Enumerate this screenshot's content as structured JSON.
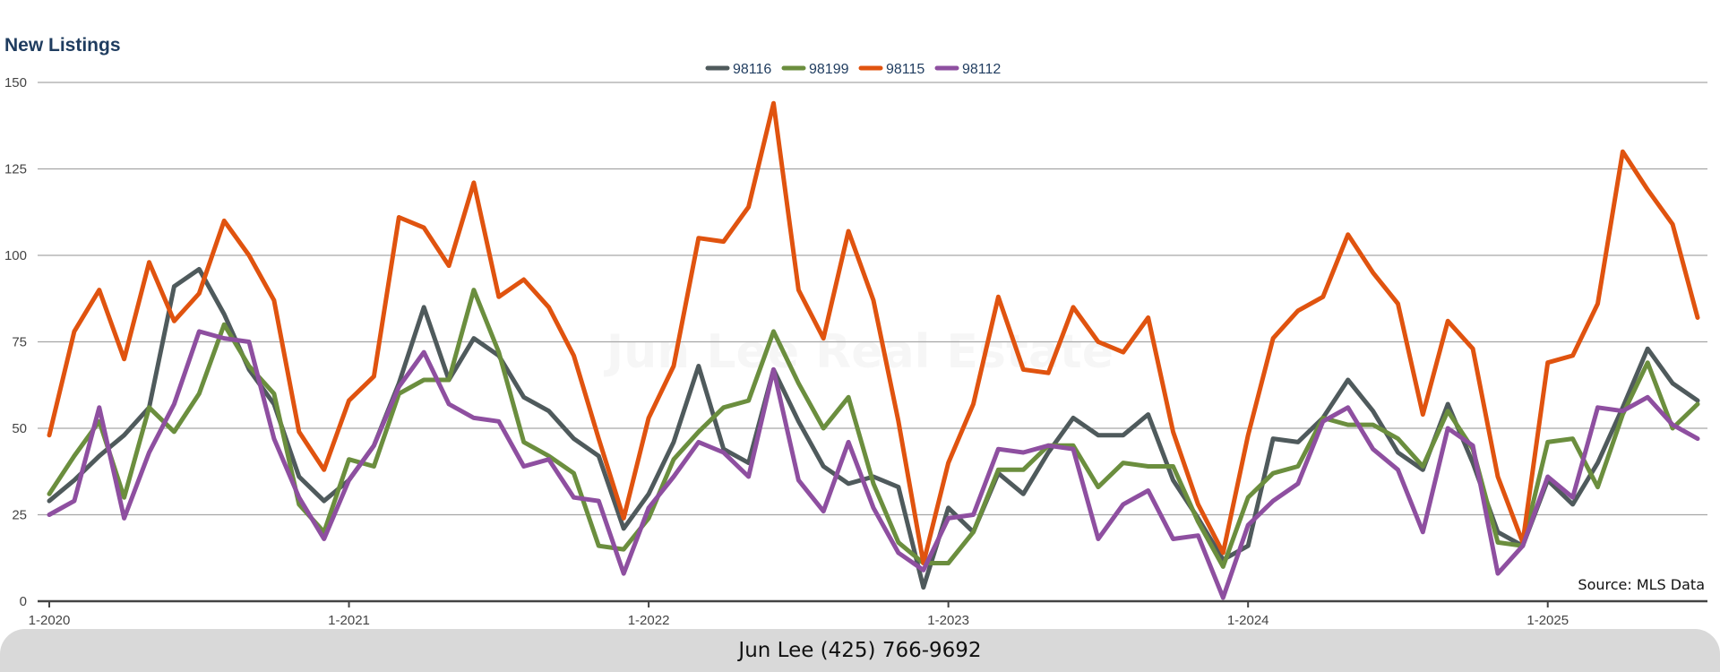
{
  "chart_data": {
    "type": "line",
    "title": "New Listings",
    "xlabel": "",
    "ylabel": "",
    "ylim": [
      0,
      150
    ],
    "yticks": [
      0,
      25,
      50,
      75,
      100,
      125,
      150
    ],
    "x": [
      "1-2020",
      "2-2020",
      "3-2020",
      "4-2020",
      "5-2020",
      "6-2020",
      "7-2020",
      "8-2020",
      "9-2020",
      "10-2020",
      "11-2020",
      "12-2020",
      "1-2021",
      "2-2021",
      "3-2021",
      "4-2021",
      "5-2021",
      "6-2021",
      "7-2021",
      "8-2021",
      "9-2021",
      "10-2021",
      "11-2021",
      "12-2021",
      "1-2022",
      "2-2022",
      "3-2022",
      "4-2022",
      "5-2022",
      "6-2022",
      "7-2022",
      "8-2022",
      "9-2022",
      "10-2022",
      "11-2022",
      "12-2022",
      "1-2023",
      "2-2023",
      "3-2023",
      "4-2023",
      "5-2023",
      "6-2023",
      "7-2023",
      "8-2023",
      "9-2023",
      "10-2023",
      "11-2023",
      "12-2023",
      "1-2024",
      "2-2024",
      "3-2024",
      "4-2024",
      "5-2024",
      "6-2024",
      "7-2024",
      "8-2024",
      "9-2024",
      "10-2024",
      "11-2024",
      "12-2024",
      "1-2025",
      "2-2025",
      "3-2025",
      "4-2025",
      "5-2025",
      "6-2025",
      "7-2025"
    ],
    "xtick_labels": [
      "1-2020",
      "1-2021",
      "1-2022",
      "1-2023",
      "1-2024",
      "1-2025"
    ],
    "legend_position": "top-center",
    "grid": true,
    "series": [
      {
        "name": "98116",
        "color": "#4f5a5c",
        "values": [
          29,
          35,
          42,
          48,
          56,
          91,
          96,
          83,
          67,
          57,
          36,
          29,
          35,
          45,
          63,
          85,
          64,
          76,
          71,
          59,
          55,
          47,
          42,
          21,
          31,
          46,
          68,
          44,
          40,
          67,
          52,
          39,
          34,
          36,
          33,
          4,
          27,
          20,
          37,
          31,
          43,
          53,
          48,
          48,
          54,
          35,
          24,
          12,
          16,
          47,
          46,
          53,
          64,
          55,
          43,
          38,
          57,
          40,
          20,
          16,
          35,
          28,
          40,
          56,
          73,
          63,
          58
        ]
      },
      {
        "name": "98199",
        "color": "#6b8e3e",
        "values": [
          31,
          42,
          52,
          30,
          56,
          49,
          60,
          80,
          68,
          60,
          28,
          20,
          41,
          39,
          60,
          64,
          64,
          90,
          72,
          46,
          42,
          37,
          16,
          15,
          24,
          41,
          49,
          56,
          58,
          78,
          63,
          50,
          59,
          34,
          17,
          11,
          11,
          20,
          38,
          38,
          45,
          45,
          33,
          40,
          39,
          39,
          23,
          10,
          30,
          37,
          39,
          53,
          51,
          51,
          47,
          39,
          55,
          44,
          17,
          16,
          46,
          47,
          33,
          54,
          69,
          50,
          57
        ]
      },
      {
        "name": "98115",
        "color": "#e0530f",
        "values": [
          48,
          78,
          90,
          70,
          98,
          81,
          89,
          110,
          100,
          87,
          49,
          38,
          58,
          65,
          111,
          108,
          97,
          121,
          88,
          93,
          85,
          71,
          47,
          24,
          53,
          68,
          105,
          104,
          114,
          144,
          90,
          76,
          107,
          87,
          52,
          11,
          40,
          57,
          88,
          67,
          66,
          85,
          75,
          72,
          82,
          49,
          28,
          14,
          48,
          76,
          84,
          88,
          106,
          95,
          86,
          54,
          81,
          73,
          36,
          17,
          69,
          71,
          86,
          130,
          119,
          109,
          82
        ]
      },
      {
        "name": "98112",
        "color": "#8e4fa0",
        "values": [
          25,
          29,
          56,
          24,
          43,
          57,
          78,
          76,
          75,
          47,
          30,
          18,
          35,
          45,
          62,
          72,
          57,
          53,
          52,
          39,
          41,
          30,
          29,
          8,
          27,
          36,
          46,
          43,
          36,
          67,
          35,
          26,
          46,
          27,
          14,
          9,
          24,
          25,
          44,
          43,
          45,
          44,
          18,
          28,
          32,
          18,
          19,
          1,
          22,
          29,
          34,
          52,
          56,
          44,
          38,
          20,
          50,
          45,
          8,
          16,
          36,
          30,
          56,
          55,
          59,
          51,
          47
        ]
      }
    ],
    "annotations": [
      "Source: MLS Data"
    ],
    "watermark": "Jun Lee Real Estate"
  },
  "footer": {
    "contact": "Jun Lee (425) 766-9692"
  }
}
